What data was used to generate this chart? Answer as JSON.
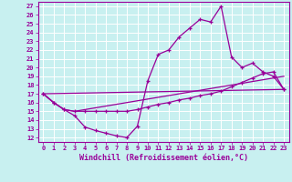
{
  "xlabel": "Windchill (Refroidissement éolien,°C)",
  "bg_color": "#c8f0f0",
  "line_color": "#990099",
  "grid_color": "#ffffff",
  "xlim": [
    -0.5,
    23.5
  ],
  "ylim": [
    11.5,
    27.5
  ],
  "xticks": [
    0,
    1,
    2,
    3,
    4,
    5,
    6,
    7,
    8,
    9,
    10,
    11,
    12,
    13,
    14,
    15,
    16,
    17,
    18,
    19,
    20,
    21,
    22,
    23
  ],
  "yticks": [
    12,
    13,
    14,
    15,
    16,
    17,
    18,
    19,
    20,
    21,
    22,
    23,
    24,
    25,
    26,
    27
  ],
  "line1_x": [
    0,
    1,
    2,
    3,
    4,
    5,
    6,
    7,
    8,
    9,
    10,
    11,
    12,
    13,
    14,
    15,
    16,
    17,
    18,
    19,
    20,
    21,
    22,
    23
  ],
  "line1_y": [
    17.0,
    16.0,
    15.2,
    14.5,
    13.2,
    12.8,
    12.5,
    12.2,
    12.0,
    13.3,
    18.5,
    21.5,
    22.0,
    23.5,
    24.5,
    25.5,
    25.2,
    27.0,
    21.2,
    20.0,
    20.5,
    19.5,
    19.0,
    17.5
  ],
  "line2_x": [
    0,
    1,
    2,
    3,
    4,
    5,
    6,
    7,
    8,
    9,
    10,
    11,
    12,
    13,
    14,
    15,
    16,
    17,
    18,
    19,
    20,
    21,
    22,
    23
  ],
  "line2_y": [
    17.0,
    16.0,
    15.2,
    15.0,
    15.0,
    15.0,
    15.0,
    15.0,
    15.0,
    15.2,
    15.5,
    15.8,
    16.0,
    16.3,
    16.5,
    16.8,
    17.0,
    17.3,
    17.8,
    18.3,
    18.8,
    19.3,
    19.5,
    17.5
  ],
  "line3_x": [
    0,
    1,
    2,
    3,
    23
  ],
  "line3_y": [
    17.0,
    16.0,
    15.2,
    15.0,
    19.0
  ],
  "line4_x": [
    0,
    23
  ],
  "line4_y": [
    17.0,
    17.5
  ],
  "font_size": 6.0
}
